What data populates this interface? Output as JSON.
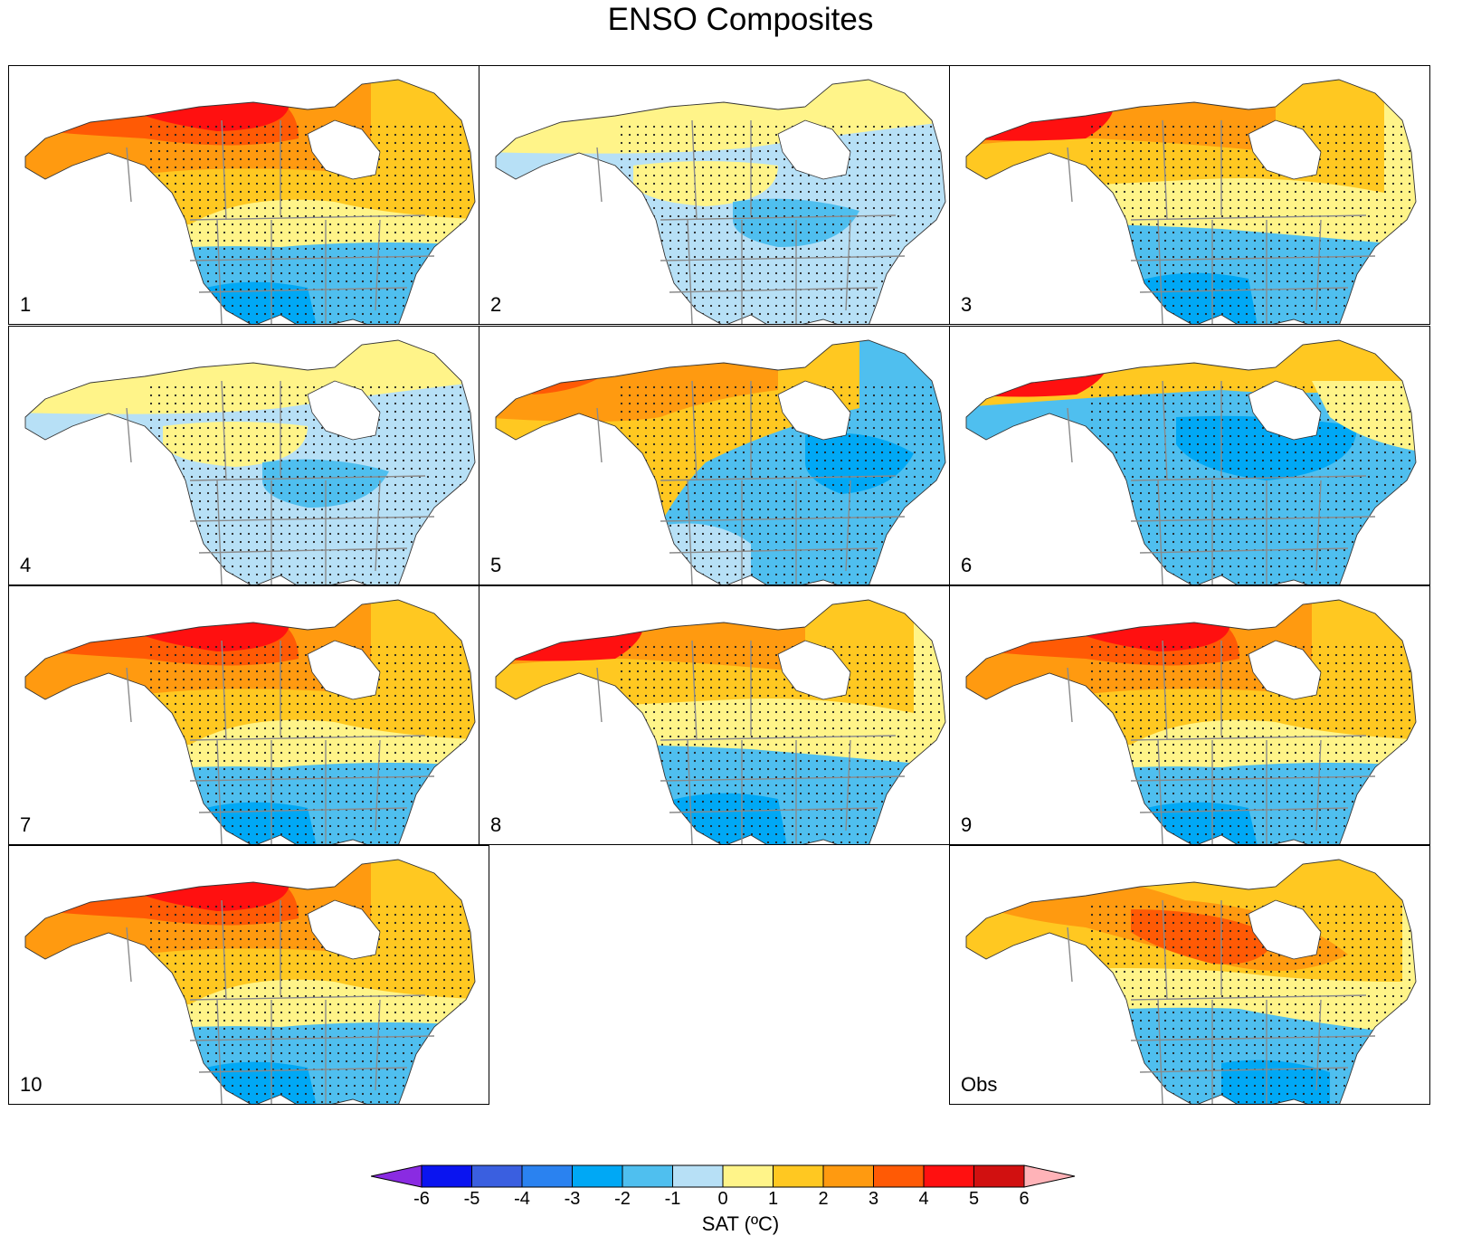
{
  "title": "ENSO Composites",
  "panels": [
    {
      "label": "1",
      "pattern": "warm-north"
    },
    {
      "label": "2",
      "pattern": "weak"
    },
    {
      "label": "3",
      "pattern": "hot-alaska"
    },
    {
      "label": "4",
      "pattern": "weak"
    },
    {
      "label": "5",
      "pattern": "warm-west-cold-east"
    },
    {
      "label": "6",
      "pattern": "hot-alaska-cold-us"
    },
    {
      "label": "7",
      "pattern": "warm-north"
    },
    {
      "label": "8",
      "pattern": "hot-alaska"
    },
    {
      "label": "9",
      "pattern": "warm-north"
    },
    {
      "label": "10",
      "pattern": "warm-north"
    },
    {
      "label": "Obs",
      "pattern": "obs"
    }
  ],
  "colorbar": {
    "title": "SAT (ºC)",
    "ticks": [
      "-6",
      "-5",
      "-4",
      "-3",
      "-2",
      "-1",
      "0",
      "1",
      "2",
      "3",
      "4",
      "5",
      "6"
    ],
    "colors": [
      "#8a2be2",
      "#0a14f0",
      "#3a5fe0",
      "#2a82f0",
      "#00a8f5",
      "#4fbfef",
      "#b7e0f6",
      "#fff489",
      "#ffc821",
      "#ff9a10",
      "#ff5a05",
      "#ff1010",
      "#d11010",
      "#ffb3b8"
    ]
  }
}
